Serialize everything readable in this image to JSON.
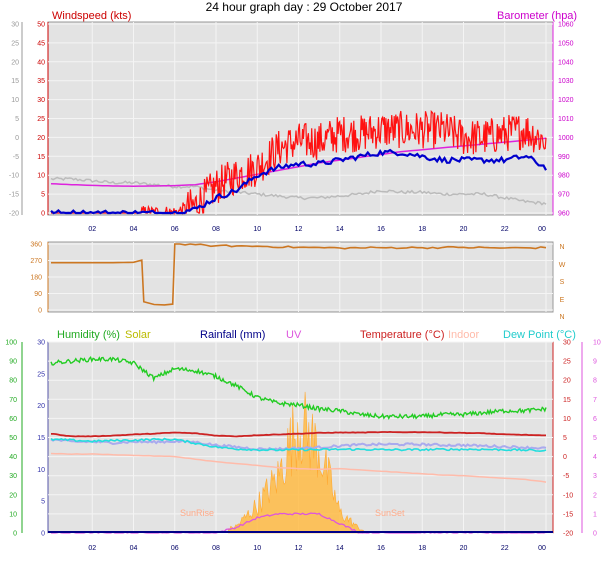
{
  "title": "24 hour graph day : 29 October 2017",
  "colors": {
    "wind_gust": "#ff1111",
    "wind_avg": "#0000cc",
    "barometer": "#dd22dd",
    "direction": "#cc7722",
    "humidity": "#22cc22",
    "temperature": "#cc2222",
    "dewpoint": "#22dddd",
    "indoor": "#ffbbaa",
    "indoor_hum": "#aaaaee",
    "solar": "#ffbb44",
    "uv": "#dd55dd",
    "rainfall": "#000088",
    "wind_gray": "#bbbbbb"
  },
  "chart_data": [
    {
      "type": "line",
      "panel": "wind",
      "x_ticks": [
        "02",
        "04",
        "06",
        "08",
        "10",
        "12",
        "14",
        "16",
        "18",
        "20",
        "22",
        "00"
      ],
      "left_axis": {
        "label": "Windspeed (kts)",
        "ticks": [
          "0",
          "5",
          "10",
          "15",
          "20",
          "25",
          "30",
          "35",
          "40",
          "45",
          "50"
        ]
      },
      "outer_left_axis": {
        "ticks": [
          "-20",
          "-15",
          "-10",
          "-5",
          "0",
          "5",
          "10",
          "15",
          "20",
          "25",
          "30"
        ]
      },
      "right_axis": {
        "label": "Barometer (hpa)",
        "ticks": [
          "960",
          "970",
          "980",
          "990",
          "1000",
          "1010",
          "1020",
          "1030",
          "1040",
          "1050",
          "1060"
        ]
      },
      "x": [
        0,
        1,
        2,
        3,
        4,
        5,
        6,
        7,
        8,
        9,
        10,
        11,
        12,
        13,
        14,
        15,
        16,
        17,
        18,
        19,
        20,
        21,
        22,
        23,
        24
      ],
      "series": [
        {
          "key": "gust",
          "values": [
            0,
            0,
            0,
            0,
            0,
            0,
            0,
            2,
            7,
            10,
            12,
            17,
            19,
            19,
            21,
            21,
            22,
            22,
            22,
            22,
            20,
            20,
            21,
            22,
            19
          ]
        },
        {
          "key": "avg",
          "values": [
            0,
            0,
            0,
            0,
            0,
            0,
            0,
            1,
            4,
            6,
            10,
            12,
            13,
            13,
            14,
            15,
            16,
            16,
            15,
            14,
            14,
            14,
            14,
            15,
            12
          ]
        },
        {
          "key": "barometer",
          "values": [
            975.5,
            975.0,
            974.6,
            974.3,
            974.2,
            974.3,
            974.5,
            975.0,
            976.5,
            978.5,
            980.5,
            982.5,
            984.5,
            986.5,
            988.0,
            989.5,
            991.0,
            992.5,
            993.5,
            994.5,
            995.5,
            996.5,
            997.5,
            998.5,
            999.5
          ]
        },
        {
          "key": "gray",
          "values": [
            9,
            9,
            8.5,
            8,
            8,
            7.5,
            7,
            7,
            6,
            5.5,
            5,
            4.5,
            4,
            4,
            4.5,
            5,
            6,
            5.5,
            5.5,
            5,
            5,
            5,
            4,
            3,
            2.5
          ]
        }
      ]
    },
    {
      "type": "line",
      "panel": "direction",
      "y_ticks": [
        "0",
        "90",
        "180",
        "270",
        "360"
      ],
      "compass": [
        "N",
        "W",
        "S",
        "E",
        "N"
      ],
      "x": [
        0,
        1,
        2,
        3,
        4,
        4.4,
        4.5,
        5,
        5.5,
        5.9,
        6.0,
        7,
        8,
        10,
        12,
        14,
        16,
        18,
        20,
        22,
        24
      ],
      "values": [
        258,
        258,
        258,
        258,
        260,
        272,
        45,
        30,
        28,
        32,
        360,
        356,
        350,
        348,
        342,
        338,
        340,
        340,
        342,
        338,
        340
      ]
    },
    {
      "type": "line",
      "panel": "temperature",
      "labels": [
        "Humidity (%)",
        "Solar",
        "Rainfall (mm)",
        "UV",
        "Temperature (°C)",
        "Indoor",
        "Dew Point (°C)"
      ],
      "hum_axis": [
        "0",
        "10",
        "20",
        "30",
        "40",
        "50",
        "60",
        "70",
        "80",
        "90",
        "100"
      ],
      "inner_axis": [
        "0",
        "5",
        "10",
        "15",
        "20",
        "25",
        "30"
      ],
      "right_axis": [
        "-20",
        "-15",
        "-10",
        "-5",
        "0",
        "5",
        "10",
        "15",
        "20",
        "25",
        "30"
      ],
      "outer_right_axis": [
        "0",
        "1",
        "2",
        "3",
        "4",
        "5",
        "6",
        "7",
        "8",
        "9",
        "10"
      ],
      "annotations": [
        "SunRise",
        "SunSet"
      ],
      "x": [
        0,
        1,
        2,
        3,
        4,
        5,
        6,
        7,
        8,
        9,
        10,
        11,
        12,
        13,
        14,
        15,
        16,
        17,
        18,
        19,
        20,
        21,
        22,
        23,
        24
      ],
      "series": [
        {
          "key": "humidity",
          "values": [
            89,
            90,
            91,
            91,
            89,
            81,
            86,
            85,
            82,
            77,
            71,
            68,
            67,
            65,
            64,
            62,
            61,
            61,
            61,
            62,
            62,
            63,
            64,
            64,
            65
          ]
        },
        {
          "key": "temperature",
          "values": [
            6,
            5.3,
            5.3,
            5.5,
            5.8,
            6.0,
            6.3,
            6.1,
            5.5,
            5.3,
            5.6,
            5.8,
            6.0,
            6.2,
            6.3,
            6.3,
            6.4,
            6.4,
            6.4,
            6.3,
            6.2,
            6.1,
            5.8,
            5.7,
            5.5
          ]
        },
        {
          "key": "dewpoint",
          "values": [
            4.5,
            4.3,
            4.0,
            4.2,
            4.3,
            4.5,
            4.5,
            3.5,
            2.5,
            2.0,
            1.8,
            1.7,
            1.8,
            1.8,
            1.9,
            1.9,
            1.8,
            1.8,
            1.8,
            1.9,
            1.9,
            1.9,
            1.8,
            1.7,
            1.5
          ]
        },
        {
          "key": "indoor",
          "values": [
            12.5,
            12.4,
            12.4,
            12.3,
            12.2,
            12.1,
            12.0,
            11.6,
            11.2,
            10.9,
            10.6,
            10.3,
            10.1,
            10.0,
            10.1,
            9.9,
            9.7,
            9.5,
            9.3,
            9.1,
            9.0,
            8.8,
            8.6,
            8.4,
            8.0
          ]
        },
        {
          "key": "indoor_hum",
          "values": [
            4.5,
            3.9,
            3.9,
            3.6,
            3.9,
            3.8,
            4.0,
            3.8,
            3.0,
            2.5,
            2.0,
            2.0,
            2.2,
            2.4,
            2.8,
            3.1,
            3.2,
            3.2,
            3.2,
            3.0,
            3.0,
            2.8,
            2.6,
            2.4,
            2.2
          ]
        },
        {
          "key": "solar",
          "values": [
            0,
            0,
            0,
            0,
            0,
            0,
            0,
            0,
            0,
            1,
            4,
            8,
            16,
            12,
            3,
            0.5,
            0,
            0,
            0,
            0,
            0,
            0,
            0,
            0,
            0
          ]
        },
        {
          "key": "uv",
          "values": [
            0,
            0,
            0,
            0,
            0,
            0,
            0,
            0,
            0,
            0.3,
            0.8,
            1,
            1,
            1,
            0.5,
            0,
            0,
            0,
            0,
            0,
            0,
            0,
            0,
            0,
            0
          ]
        }
      ]
    }
  ]
}
